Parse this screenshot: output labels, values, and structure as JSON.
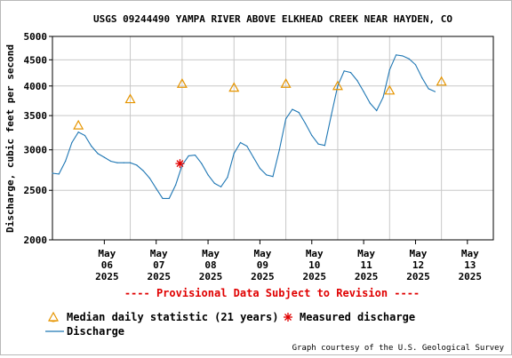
{
  "chart_data": {
    "type": "line",
    "title": "USGS 09244490 YAMPA RIVER ABOVE ELKHEAD CREEK NEAR HAYDEN, CO",
    "ylabel": "Discharge, cubic feet per second",
    "y_scale": "log",
    "ylim": [
      2000,
      5000
    ],
    "y_ticks": [
      2000,
      2500,
      3000,
      3500,
      4000,
      4500,
      5000
    ],
    "y_tick_labels": [
      "2000",
      "2500",
      "3000",
      "3500",
      "4000",
      "4500",
      "5000"
    ],
    "x_range": [
      "2025-05-05T00:00",
      "2025-05-13T12:00"
    ],
    "x_ticks": [
      {
        "date": "2025-05-06T00:00",
        "month": "May",
        "day": "06",
        "year": "2025"
      },
      {
        "date": "2025-05-07T00:00",
        "month": "May",
        "day": "07",
        "year": "2025"
      },
      {
        "date": "2025-05-08T00:00",
        "month": "May",
        "day": "08",
        "year": "2025"
      },
      {
        "date": "2025-05-09T00:00",
        "month": "May",
        "day": "09",
        "year": "2025"
      },
      {
        "date": "2025-05-10T00:00",
        "month": "May",
        "day": "10",
        "year": "2025"
      },
      {
        "date": "2025-05-11T00:00",
        "month": "May",
        "day": "11",
        "year": "2025"
      },
      {
        "date": "2025-05-12T00:00",
        "month": "May",
        "day": "12",
        "year": "2025"
      },
      {
        "date": "2025-05-13T00:00",
        "month": "May",
        "day": "13",
        "year": "2025"
      }
    ],
    "grid": true,
    "legend_position": "bottom",
    "series": [
      {
        "name": "Discharge",
        "kind": "line",
        "color": "#1f77b4",
        "points": [
          {
            "x": "2025-05-05T00:00",
            "y": 2700
          },
          {
            "x": "2025-05-05T03:00",
            "y": 2690
          },
          {
            "x": "2025-05-05T06:00",
            "y": 2850
          },
          {
            "x": "2025-05-05T09:00",
            "y": 3100
          },
          {
            "x": "2025-05-05T12:00",
            "y": 3250
          },
          {
            "x": "2025-05-05T15:00",
            "y": 3200
          },
          {
            "x": "2025-05-05T18:00",
            "y": 3050
          },
          {
            "x": "2025-05-05T21:00",
            "y": 2950
          },
          {
            "x": "2025-05-06T00:00",
            "y": 2900
          },
          {
            "x": "2025-05-06T03:00",
            "y": 2850
          },
          {
            "x": "2025-05-06T06:00",
            "y": 2830
          },
          {
            "x": "2025-05-06T09:00",
            "y": 2830
          },
          {
            "x": "2025-05-06T12:00",
            "y": 2830
          },
          {
            "x": "2025-05-06T15:00",
            "y": 2800
          },
          {
            "x": "2025-05-06T18:00",
            "y": 2730
          },
          {
            "x": "2025-05-06T21:00",
            "y": 2640
          },
          {
            "x": "2025-05-07T00:00",
            "y": 2520
          },
          {
            "x": "2025-05-07T03:00",
            "y": 2410
          },
          {
            "x": "2025-05-07T06:00",
            "y": 2410
          },
          {
            "x": "2025-05-07T09:00",
            "y": 2560
          },
          {
            "x": "2025-05-07T12:00",
            "y": 2800
          },
          {
            "x": "2025-05-07T15:00",
            "y": 2920
          },
          {
            "x": "2025-05-07T18:00",
            "y": 2930
          },
          {
            "x": "2025-05-07T21:00",
            "y": 2820
          },
          {
            "x": "2025-05-08T00:00",
            "y": 2680
          },
          {
            "x": "2025-05-08T03:00",
            "y": 2580
          },
          {
            "x": "2025-05-08T06:00",
            "y": 2540
          },
          {
            "x": "2025-05-08T09:00",
            "y": 2650
          },
          {
            "x": "2025-05-08T12:00",
            "y": 2950
          },
          {
            "x": "2025-05-08T15:00",
            "y": 3100
          },
          {
            "x": "2025-05-08T18:00",
            "y": 3050
          },
          {
            "x": "2025-05-08T21:00",
            "y": 2900
          },
          {
            "x": "2025-05-09T00:00",
            "y": 2760
          },
          {
            "x": "2025-05-09T03:00",
            "y": 2680
          },
          {
            "x": "2025-05-09T06:00",
            "y": 2660
          },
          {
            "x": "2025-05-09T09:00",
            "y": 3000
          },
          {
            "x": "2025-05-09T12:00",
            "y": 3450
          },
          {
            "x": "2025-05-09T15:00",
            "y": 3600
          },
          {
            "x": "2025-05-09T18:00",
            "y": 3550
          },
          {
            "x": "2025-05-09T21:00",
            "y": 3380
          },
          {
            "x": "2025-05-10T00:00",
            "y": 3200
          },
          {
            "x": "2025-05-10T03:00",
            "y": 3080
          },
          {
            "x": "2025-05-10T06:00",
            "y": 3060
          },
          {
            "x": "2025-05-10T09:00",
            "y": 3500
          },
          {
            "x": "2025-05-10T12:00",
            "y": 4000
          },
          {
            "x": "2025-05-10T15:00",
            "y": 4280
          },
          {
            "x": "2025-05-10T18:00",
            "y": 4250
          },
          {
            "x": "2025-05-10T21:00",
            "y": 4100
          },
          {
            "x": "2025-05-11T00:00",
            "y": 3900
          },
          {
            "x": "2025-05-11T03:00",
            "y": 3700
          },
          {
            "x": "2025-05-11T06:00",
            "y": 3580
          },
          {
            "x": "2025-05-11T09:00",
            "y": 3800
          },
          {
            "x": "2025-05-11T12:00",
            "y": 4300
          },
          {
            "x": "2025-05-11T15:00",
            "y": 4600
          },
          {
            "x": "2025-05-11T18:00",
            "y": 4580
          },
          {
            "x": "2025-05-11T21:00",
            "y": 4520
          },
          {
            "x": "2025-05-12T00:00",
            "y": 4400
          },
          {
            "x": "2025-05-12T03:00",
            "y": 4150
          },
          {
            "x": "2025-05-12T06:00",
            "y": 3950
          },
          {
            "x": "2025-05-12T09:00",
            "y": 3900
          }
        ]
      },
      {
        "name": "Median daily statistic (21 years)",
        "kind": "marker",
        "marker": "triangle",
        "color": "#e69500",
        "points": [
          {
            "x": "2025-05-05T12:00",
            "y": 3350
          },
          {
            "x": "2025-05-06T12:00",
            "y": 3770
          },
          {
            "x": "2025-05-07T12:00",
            "y": 4040
          },
          {
            "x": "2025-05-08T12:00",
            "y": 3970
          },
          {
            "x": "2025-05-09T12:00",
            "y": 4040
          },
          {
            "x": "2025-05-10T12:00",
            "y": 4000
          },
          {
            "x": "2025-05-11T12:00",
            "y": 3920
          },
          {
            "x": "2025-05-12T12:00",
            "y": 4080
          }
        ]
      },
      {
        "name": "Measured discharge",
        "kind": "marker",
        "marker": "asterisk",
        "color": "#e00000",
        "points": [
          {
            "x": "2025-05-07T11:00",
            "y": 2820
          }
        ]
      }
    ]
  },
  "notice": "---- Provisional Data Subject to Revision ----",
  "legend": {
    "median_label": "Median daily statistic (21 years)",
    "measured_label": "Measured discharge",
    "discharge_label": "Discharge"
  },
  "credit": "Graph courtesy of the U.S. Geological Survey"
}
